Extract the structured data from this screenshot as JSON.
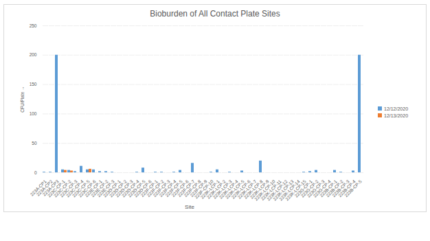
{
  "chart_data": {
    "type": "bar",
    "title": "Bioburden of All Contact Plate Sites",
    "xlabel": "Site",
    "ylabel": "CFU/Plate",
    "categories": [
      "223A-CP1",
      "223A-CP2",
      "223A-CP3",
      "223C-CP-1",
      "223C-CP-2",
      "223C-CP-3",
      "223C-CP-4",
      "223C-CP-5",
      "223C-CP-6",
      "223E-CP-1",
      "223E-CP-2",
      "223E-CP-3",
      "223D-CP-1",
      "223D-CP-2",
      "223D-CP-3",
      "223D-CP-4",
      "223D-CP-5",
      "223D-CP-6",
      "223F-CP-1",
      "223F-CP-2",
      "223F-CP-3",
      "223F-CP-4",
      "223F-CP-5",
      "223F-CP-6",
      "223F-CP-7",
      "223F-CP-8",
      "223F-CP-9",
      "223F-CP-10",
      "223K-LCP-1",
      "223K-LCP-2",
      "223K-LCP-3",
      "223K-LCP-4",
      "223K-LCP-5",
      "223K-LCP-6",
      "223K-LCP-7",
      "223K-LCP-8",
      "223K-LCP-9",
      "223K-LCP-10",
      "223K-LCP-11",
      "223K-LCP-12",
      "223K-LCP-13",
      "223K-LCP-14",
      "223K-LCP-15",
      "223G-CP-1",
      "223G-CP-2",
      "223G-CP-3",
      "223G-CP-4",
      "223B-CP-1",
      "223B-CP-2",
      "223B-CP-3",
      "223B-CP-4",
      "223B-CP-5"
    ],
    "series": [
      {
        "name": "12/12/2020",
        "color": "#5b9bd5",
        "values": [
          1,
          1,
          200,
          5,
          4,
          2,
          11,
          5,
          5,
          2,
          2,
          1,
          0,
          0,
          0,
          1,
          8,
          0,
          1,
          1,
          0,
          1,
          4,
          0,
          16,
          0,
          0,
          1,
          5,
          0,
          1,
          0,
          3,
          0,
          0,
          20,
          0,
          0,
          0,
          0,
          0,
          0,
          1,
          2,
          4,
          0,
          0,
          4,
          1,
          0,
          3,
          200
        ]
      },
      {
        "name": "12/13/2020",
        "color": "#ed7d31",
        "values": [
          0,
          0,
          0,
          4,
          3,
          0,
          0,
          6,
          0,
          0,
          0,
          0,
          0,
          0,
          0,
          0,
          0,
          0,
          0,
          0,
          0,
          0,
          0,
          0,
          0,
          0,
          0,
          0,
          0,
          0,
          0,
          0,
          0,
          0,
          0,
          0,
          0,
          0,
          0,
          0,
          0,
          0,
          0,
          0,
          0,
          0,
          0,
          0,
          0,
          0,
          0,
          0
        ]
      }
    ],
    "ylim": [
      0,
      250
    ],
    "yticks": [
      0,
      50,
      100,
      150,
      200,
      250
    ],
    "grid": true,
    "legend": "right"
  }
}
